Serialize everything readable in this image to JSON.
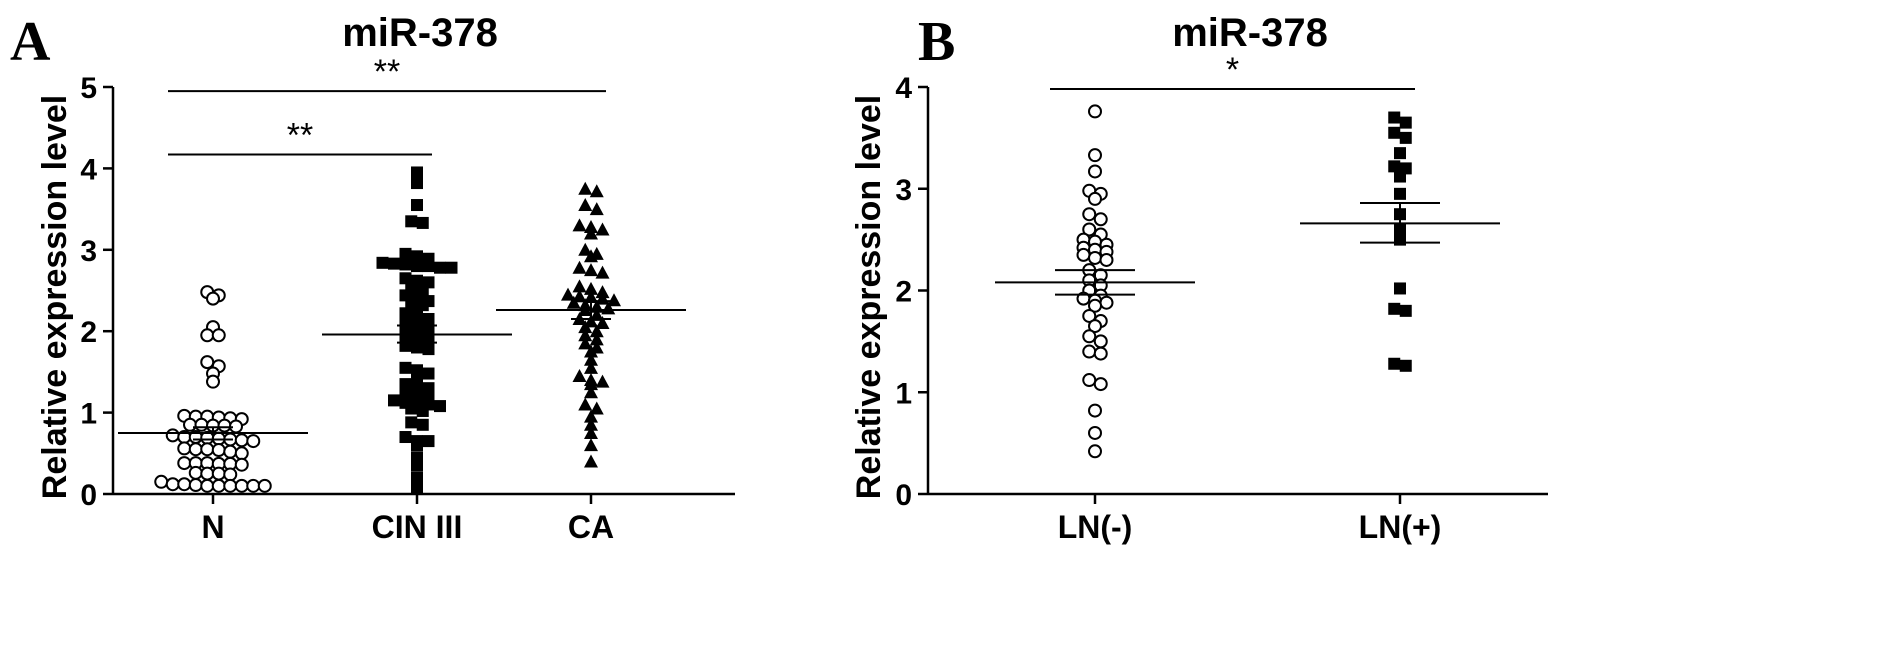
{
  "chart_data": [
    {
      "panel": "A",
      "type": "scatter",
      "title": "miR-378",
      "ylabel": "Relative expression level",
      "ylim": [
        0,
        5
      ],
      "yticks": [
        "0",
        "1",
        "2",
        "3",
        "4",
        "5"
      ],
      "categories": [
        "N",
        "CIN III",
        "CA"
      ],
      "markers": [
        "circle",
        "square",
        "triangle"
      ],
      "series": [
        {
          "category": "N",
          "mean": 0.75,
          "sem_low": 0.67,
          "sem_high": 0.82,
          "values": [
            2.48,
            2.44,
            2.4,
            2.05,
            1.95,
            1.95,
            1.62,
            1.57,
            1.48,
            1.38,
            0.96,
            0.95,
            0.94,
            0.93,
            0.92,
            0.95,
            0.85,
            0.84,
            0.83,
            0.84,
            0.85,
            0.72,
            0.7,
            0.7,
            0.69,
            0.68,
            0.67,
            0.66,
            0.65,
            0.56,
            0.55,
            0.55,
            0.54,
            0.52,
            0.5,
            0.38,
            0.38,
            0.37,
            0.36,
            0.38,
            0.37,
            0.25,
            0.26,
            0.24,
            0.25,
            0.12,
            0.1,
            0.1,
            0.1,
            0.1,
            0.1,
            0.1,
            0.11,
            0.12,
            0.15
          ]
        },
        {
          "category": "CIN III",
          "mean": 1.96,
          "sem_low": 1.86,
          "sem_high": 2.07,
          "values": [
            3.95,
            3.82,
            3.55,
            3.35,
            3.33,
            2.95,
            2.92,
            2.89,
            2.84,
            2.83,
            2.82,
            2.8,
            2.8,
            2.78,
            2.78,
            2.65,
            2.62,
            2.6,
            2.52,
            2.48,
            2.44,
            2.4,
            2.37,
            2.33,
            2.32,
            2.22,
            2.2,
            2.15,
            2.12,
            2.08,
            2.05,
            2.0,
            1.95,
            1.93,
            1.9,
            1.88,
            1.85,
            1.82,
            1.8,
            1.78,
            1.55,
            1.52,
            1.48,
            1.45,
            1.35,
            1.33,
            1.3,
            1.25,
            1.2,
            1.18,
            1.15,
            1.12,
            1.1,
            1.1,
            1.08,
            1.05,
            1.02,
            0.88,
            0.85,
            0.7,
            0.65,
            0.65,
            0.6,
            0.45,
            0.35,
            0.2,
            0.08
          ]
        },
        {
          "category": "CA",
          "mean": 2.26,
          "sem_low": 2.15,
          "sem_high": 2.37,
          "values": [
            3.75,
            3.72,
            3.55,
            3.5,
            3.3,
            3.28,
            3.25,
            3.2,
            3.0,
            2.95,
            2.92,
            2.78,
            2.75,
            2.72,
            2.55,
            2.52,
            2.48,
            2.45,
            2.43,
            2.42,
            2.4,
            2.38,
            2.35,
            2.32,
            2.3,
            2.28,
            2.26,
            2.2,
            2.15,
            2.12,
            2.1,
            2.05,
            2.0,
            1.95,
            1.9,
            1.85,
            1.8,
            1.75,
            1.65,
            1.55,
            1.45,
            1.4,
            1.38,
            1.35,
            1.25,
            1.1,
            1.05,
            0.95,
            0.85,
            0.75,
            0.6,
            0.4
          ]
        }
      ],
      "significance": [
        {
          "label": "**",
          "from": "N",
          "to": "CIN III",
          "y": 4.17
        },
        {
          "label": "**",
          "from": "N",
          "to": "CA",
          "y": 4.95
        }
      ]
    },
    {
      "panel": "B",
      "type": "scatter",
      "title": "miR-378",
      "ylabel": "Relative expression level",
      "ylim": [
        0,
        4
      ],
      "yticks": [
        "0",
        "1",
        "2",
        "3",
        "4"
      ],
      "categories": [
        "LN(-)",
        "LN(+)"
      ],
      "markers": [
        "circle",
        "square"
      ],
      "series": [
        {
          "category": "LN(-)",
          "mean": 2.08,
          "sem_low": 1.96,
          "sem_high": 2.2,
          "values": [
            3.76,
            3.33,
            3.17,
            2.98,
            2.95,
            2.9,
            2.75,
            2.7,
            2.6,
            2.55,
            2.5,
            2.48,
            2.45,
            2.42,
            2.4,
            2.38,
            2.35,
            2.32,
            2.3,
            2.2,
            2.15,
            2.1,
            2.05,
            2.0,
            1.95,
            1.92,
            1.9,
            1.88,
            1.85,
            1.75,
            1.7,
            1.65,
            1.55,
            1.5,
            1.4,
            1.38,
            1.12,
            1.08,
            0.82,
            0.6,
            0.42
          ]
        },
        {
          "category": "LN(+)",
          "mean": 2.66,
          "sem_low": 2.47,
          "sem_high": 2.86,
          "values": [
            3.7,
            3.65,
            3.55,
            3.5,
            3.35,
            3.22,
            3.2,
            3.12,
            2.95,
            2.75,
            2.6,
            2.5,
            2.02,
            1.82,
            1.8,
            1.28,
            1.26
          ]
        }
      ],
      "significance": [
        {
          "label": "*",
          "from": "LN(-)",
          "to": "LN(+)",
          "y": 3.98
        }
      ]
    }
  ]
}
